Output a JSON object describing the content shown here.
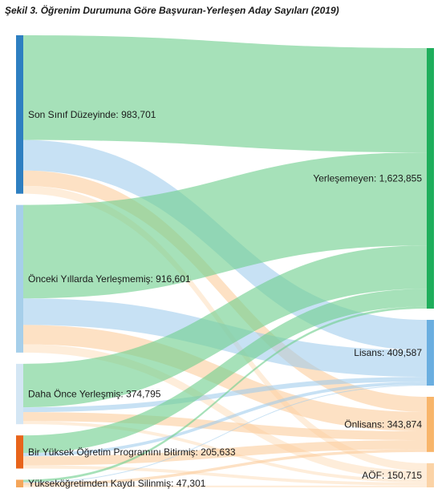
{
  "title": "Şekil 3. Öğrenim Durumuna Göre Başvuran-Yerleşen Aday Sayıları (2019)",
  "chart_data": {
    "type": "sankey",
    "title": "Şekil 3. Öğrenim Durumuna Göre Başvuran-Yerleşen Aday Sayıları (2019)",
    "sources": [
      {
        "id": "son",
        "label": "Son Sınıf Düzeyinde: 983,701",
        "value": 983701,
        "color": "#2e7fc1"
      },
      {
        "id": "onceki",
        "label": "Önceki Yıllarda Yerleşmemiş: 916,601",
        "value": 916601,
        "color": "#a6cfea"
      },
      {
        "id": "daha",
        "label": "Daha Önce Yerleşmiş: 374,795",
        "value": 374795,
        "color": "#d4e6f4"
      },
      {
        "id": "bitirmis",
        "label": "Bir Yüksek Öğretim Programını Bitirmiş: 205,633",
        "value": 205633,
        "color": "#e8641b"
      },
      {
        "id": "silinmis",
        "label": "Yükseköğretimden Kaydı Silinmiş: 47,301",
        "value": 47301,
        "color": "#f4a65a"
      }
    ],
    "targets": [
      {
        "id": "yerlesmeyen",
        "label": "Yerleşemeyen: 1,623,855",
        "value": 1623855,
        "color": "#1fae5c",
        "link_color": "#6fcf8e"
      },
      {
        "id": "lisans",
        "label": "Lisans: 409,587",
        "value": 409587,
        "color": "#6aaee0",
        "link_color": "#9fcbec"
      },
      {
        "id": "onlisans",
        "label": "Önlisans: 343,874",
        "value": 343874,
        "color": "#f8b56a",
        "link_color": "#fbcb9a"
      },
      {
        "id": "aof",
        "label": "AÖF: 150,715",
        "value": 150715,
        "color": "#fbd3a6",
        "link_color": "#fde0c0"
      }
    ],
    "flows": [
      {
        "source": "son",
        "target": "yerlesmeyen",
        "value": 650000
      },
      {
        "source": "son",
        "target": "lisans",
        "value": 190000
      },
      {
        "source": "son",
        "target": "onlisans",
        "value": 95000
      },
      {
        "source": "son",
        "target": "aof",
        "value": 48701
      },
      {
        "source": "onceki",
        "target": "yerlesmeyen",
        "value": 580000
      },
      {
        "source": "onceki",
        "target": "lisans",
        "value": 165000
      },
      {
        "source": "onceki",
        "target": "onlisans",
        "value": 120000
      },
      {
        "source": "onceki",
        "target": "aof",
        "value": 51601
      },
      {
        "source": "daha",
        "target": "yerlesmeyen",
        "value": 270000
      },
      {
        "source": "daha",
        "target": "lisans",
        "value": 30000
      },
      {
        "source": "daha",
        "target": "onlisans",
        "value": 55000
      },
      {
        "source": "daha",
        "target": "aof",
        "value": 19795
      },
      {
        "source": "bitirmis",
        "target": "yerlesmeyen",
        "value": 110000
      },
      {
        "source": "bitirmis",
        "target": "lisans",
        "value": 19587
      },
      {
        "source": "bitirmis",
        "target": "onlisans",
        "value": 56874
      },
      {
        "source": "bitirmis",
        "target": "aof",
        "value": 19172
      },
      {
        "source": "silinmis",
        "target": "yerlesmeyen",
        "value": 13855
      },
      {
        "source": "silinmis",
        "target": "lisans",
        "value": 5000
      },
      {
        "source": "silinmis",
        "target": "onlisans",
        "value": 17000
      },
      {
        "source": "silinmis",
        "target": "aof",
        "value": 11446
      }
    ]
  }
}
